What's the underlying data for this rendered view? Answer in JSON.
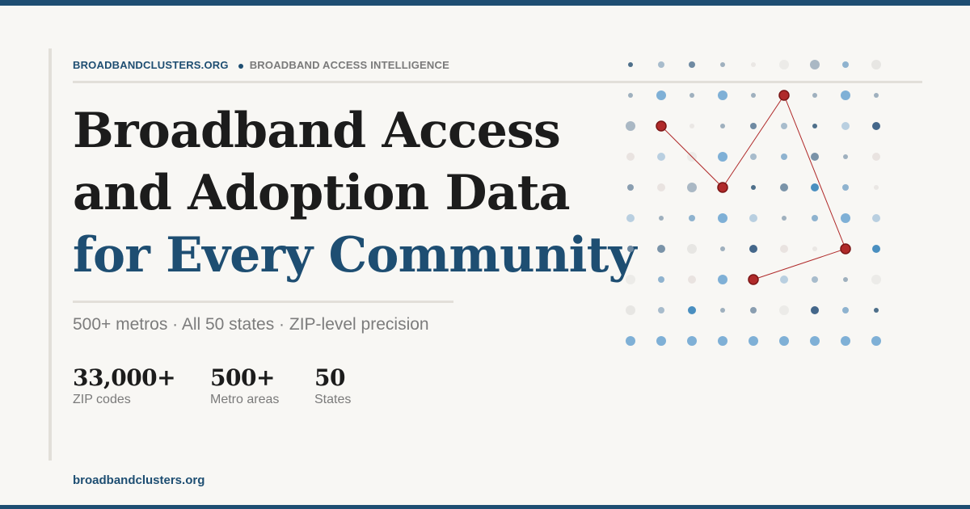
{
  "brand": {
    "site_name": "BROADBANDCLUSTERS.ORG",
    "tagline": "BROADBAND ACCESS INTELLIGENCE",
    "footer_url": "broadbandclusters.org"
  },
  "headline": {
    "line1": "Broadband Access",
    "line2": "and Adoption Data",
    "line3": "for Every Community"
  },
  "subtitle": "500+ metros · All 50 states · ZIP-level precision",
  "stats": [
    {
      "value": "33,000+",
      "label": "ZIP codes"
    },
    {
      "value": "500+",
      "label": "Metro areas"
    },
    {
      "value": "50",
      "label": "States"
    }
  ],
  "colors": {
    "brand_blue": "#1e4e72",
    "accent_red": "#b02a2a",
    "text_dark": "#1c1c1c",
    "text_muted": "#7a7a7a",
    "background": "#f8f7f4"
  },
  "decoration": {
    "grid_columns": 9,
    "grid_rows": 10,
    "highlighted_path": [
      [
        1,
        2
      ],
      [
        3,
        4
      ],
      [
        5,
        1
      ],
      [
        7,
        6
      ],
      [
        4,
        7
      ]
    ]
  }
}
